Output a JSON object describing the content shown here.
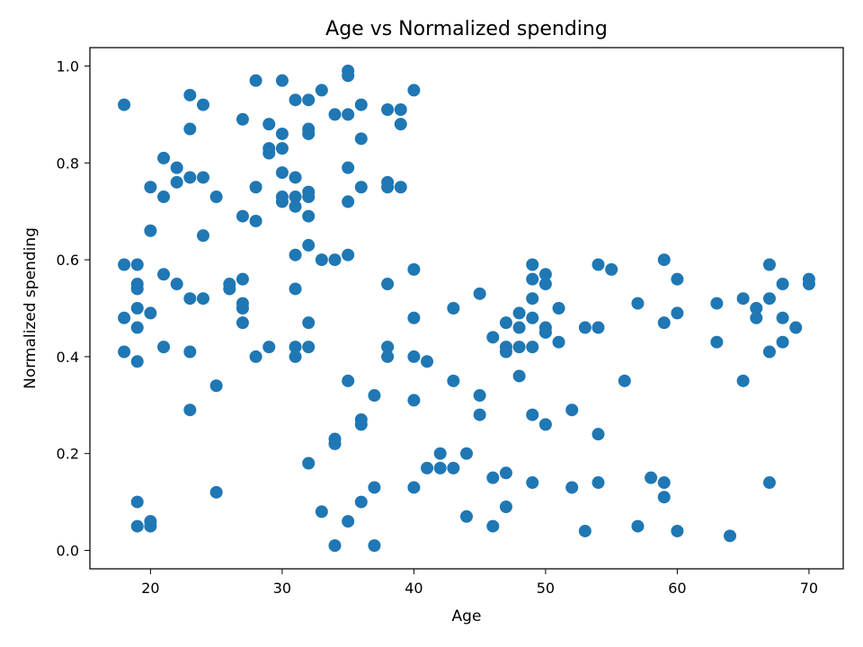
{
  "chart_data": {
    "type": "scatter",
    "title": "Age vs Normalized spending",
    "xlabel": "Age",
    "ylabel": "Normalized spending",
    "xlim": [
      15.4,
      72.6
    ],
    "ylim": [
      -0.038,
      1.038
    ],
    "xticks": [
      20,
      30,
      40,
      50,
      60,
      70
    ],
    "yticks": [
      0.0,
      0.2,
      0.4,
      0.6,
      0.8,
      1.0
    ],
    "grid": false,
    "color": "#1f77b4",
    "points": [
      [
        18,
        0.92
      ],
      [
        18,
        0.59
      ],
      [
        18,
        0.48
      ],
      [
        18,
        0.41
      ],
      [
        19,
        0.59
      ],
      [
        19,
        0.55
      ],
      [
        19,
        0.54
      ],
      [
        19,
        0.5
      ],
      [
        19,
        0.46
      ],
      [
        19,
        0.39
      ],
      [
        19,
        0.1
      ],
      [
        19,
        0.05
      ],
      [
        20,
        0.75
      ],
      [
        20,
        0.66
      ],
      [
        20,
        0.49
      ],
      [
        20,
        0.06
      ],
      [
        20,
        0.05
      ],
      [
        21,
        0.81
      ],
      [
        21,
        0.73
      ],
      [
        21,
        0.57
      ],
      [
        21,
        0.42
      ],
      [
        22,
        0.79
      ],
      [
        22,
        0.76
      ],
      [
        22,
        0.55
      ],
      [
        23,
        0.94
      ],
      [
        23,
        0.87
      ],
      [
        23,
        0.77
      ],
      [
        23,
        0.52
      ],
      [
        23,
        0.41
      ],
      [
        23,
        0.29
      ],
      [
        24,
        0.92
      ],
      [
        24,
        0.77
      ],
      [
        24,
        0.65
      ],
      [
        24,
        0.52
      ],
      [
        25,
        0.73
      ],
      [
        25,
        0.34
      ],
      [
        25,
        0.12
      ],
      [
        26,
        0.55
      ],
      [
        26,
        0.54
      ],
      [
        27,
        0.89
      ],
      [
        27,
        0.69
      ],
      [
        27,
        0.56
      ],
      [
        27,
        0.51
      ],
      [
        27,
        0.5
      ],
      [
        27,
        0.47
      ],
      [
        28,
        0.97
      ],
      [
        28,
        0.75
      ],
      [
        28,
        0.68
      ],
      [
        28,
        0.4
      ],
      [
        29,
        0.88
      ],
      [
        29,
        0.83
      ],
      [
        29,
        0.82
      ],
      [
        29,
        0.42
      ],
      [
        30,
        0.97
      ],
      [
        30,
        0.86
      ],
      [
        30,
        0.83
      ],
      [
        30,
        0.78
      ],
      [
        30,
        0.73
      ],
      [
        30,
        0.72
      ],
      [
        31,
        0.93
      ],
      [
        31,
        0.77
      ],
      [
        31,
        0.73
      ],
      [
        31,
        0.71
      ],
      [
        31,
        0.61
      ],
      [
        31,
        0.54
      ],
      [
        31,
        0.42
      ],
      [
        31,
        0.4
      ],
      [
        32,
        0.93
      ],
      [
        32,
        0.87
      ],
      [
        32,
        0.86
      ],
      [
        32,
        0.74
      ],
      [
        32,
        0.73
      ],
      [
        32,
        0.69
      ],
      [
        32,
        0.63
      ],
      [
        32,
        0.47
      ],
      [
        32,
        0.42
      ],
      [
        32,
        0.18
      ],
      [
        33,
        0.95
      ],
      [
        33,
        0.6
      ],
      [
        33,
        0.08
      ],
      [
        34,
        0.9
      ],
      [
        34,
        0.6
      ],
      [
        34,
        0.23
      ],
      [
        34,
        0.22
      ],
      [
        34,
        0.01
      ],
      [
        35,
        0.99
      ],
      [
        35,
        0.98
      ],
      [
        35,
        0.9
      ],
      [
        35,
        0.79
      ],
      [
        35,
        0.72
      ],
      [
        35,
        0.61
      ],
      [
        35,
        0.35
      ],
      [
        35,
        0.06
      ],
      [
        36,
        0.92
      ],
      [
        36,
        0.85
      ],
      [
        36,
        0.75
      ],
      [
        36,
        0.27
      ],
      [
        36,
        0.26
      ],
      [
        36,
        0.1
      ],
      [
        37,
        0.32
      ],
      [
        37,
        0.13
      ],
      [
        37,
        0.01
      ],
      [
        38,
        0.91
      ],
      [
        38,
        0.76
      ],
      [
        38,
        0.75
      ],
      [
        38,
        0.55
      ],
      [
        38,
        0.42
      ],
      [
        38,
        0.4
      ],
      [
        39,
        0.91
      ],
      [
        39,
        0.88
      ],
      [
        39,
        0.75
      ],
      [
        40,
        0.95
      ],
      [
        40,
        0.58
      ],
      [
        40,
        0.48
      ],
      [
        40,
        0.4
      ],
      [
        40,
        0.31
      ],
      [
        40,
        0.13
      ],
      [
        41,
        0.39
      ],
      [
        41,
        0.17
      ],
      [
        42,
        0.2
      ],
      [
        42,
        0.17
      ],
      [
        43,
        0.5
      ],
      [
        43,
        0.35
      ],
      [
        43,
        0.17
      ],
      [
        44,
        0.2
      ],
      [
        44,
        0.07
      ],
      [
        45,
        0.53
      ],
      [
        45,
        0.32
      ],
      [
        45,
        0.28
      ],
      [
        46,
        0.44
      ],
      [
        46,
        0.15
      ],
      [
        46,
        0.05
      ],
      [
        47,
        0.47
      ],
      [
        47,
        0.42
      ],
      [
        47,
        0.41
      ],
      [
        47,
        0.16
      ],
      [
        47,
        0.09
      ],
      [
        48,
        0.49
      ],
      [
        48,
        0.46
      ],
      [
        48,
        0.42
      ],
      [
        48,
        0.36
      ],
      [
        49,
        0.59
      ],
      [
        49,
        0.56
      ],
      [
        49,
        0.52
      ],
      [
        49,
        0.48
      ],
      [
        49,
        0.42
      ],
      [
        49,
        0.28
      ],
      [
        49,
        0.14
      ],
      [
        50,
        0.57
      ],
      [
        50,
        0.55
      ],
      [
        50,
        0.46
      ],
      [
        50,
        0.45
      ],
      [
        50,
        0.26
      ],
      [
        51,
        0.5
      ],
      [
        51,
        0.43
      ],
      [
        52,
        0.29
      ],
      [
        52,
        0.13
      ],
      [
        53,
        0.46
      ],
      [
        53,
        0.04
      ],
      [
        54,
        0.59
      ],
      [
        54,
        0.46
      ],
      [
        54,
        0.24
      ],
      [
        54,
        0.14
      ],
      [
        55,
        0.58
      ],
      [
        56,
        0.35
      ],
      [
        57,
        0.51
      ],
      [
        57,
        0.05
      ],
      [
        58,
        0.15
      ],
      [
        59,
        0.6
      ],
      [
        59,
        0.47
      ],
      [
        59,
        0.14
      ],
      [
        59,
        0.11
      ],
      [
        60,
        0.56
      ],
      [
        60,
        0.49
      ],
      [
        60,
        0.04
      ],
      [
        63,
        0.51
      ],
      [
        63,
        0.43
      ],
      [
        64,
        0.03
      ],
      [
        65,
        0.52
      ],
      [
        65,
        0.35
      ],
      [
        66,
        0.5
      ],
      [
        66,
        0.48
      ],
      [
        67,
        0.59
      ],
      [
        67,
        0.52
      ],
      [
        67,
        0.41
      ],
      [
        67,
        0.14
      ],
      [
        68,
        0.55
      ],
      [
        68,
        0.48
      ],
      [
        68,
        0.43
      ],
      [
        69,
        0.46
      ],
      [
        70,
        0.56
      ],
      [
        70,
        0.55
      ]
    ]
  }
}
